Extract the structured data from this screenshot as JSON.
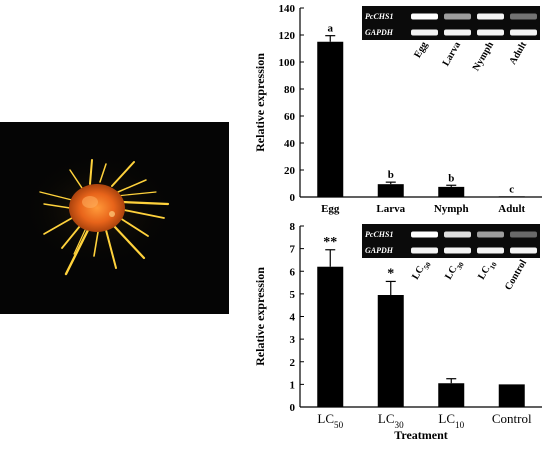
{
  "figure": {
    "photo_alt": "mite specimen photograph"
  },
  "chart_data": [
    {
      "type": "bar",
      "categories": [
        "Egg",
        "Larva",
        "Nymph",
        "Adult"
      ],
      "values": [
        115,
        9.5,
        7.5,
        0.5
      ],
      "errors": [
        4.5,
        1.5,
        1.2,
        0
      ],
      "significance": [
        "a",
        "b",
        "b",
        "c"
      ],
      "xlabel": "",
      "ylabel": "Relative expression",
      "ylim": [
        0,
        140
      ],
      "yticks": [
        0,
        20,
        40,
        60,
        80,
        100,
        120,
        140
      ],
      "grid": false,
      "gel_inset": {
        "genes": [
          "PcCHS1",
          "GAPDH"
        ],
        "lanes": [
          "Egg",
          "Larva",
          "Nymph",
          "Adult"
        ],
        "band_intensity": {
          "PcCHS1": [
            1.0,
            0.55,
            0.95,
            0.35
          ],
          "GAPDH": [
            0.95,
            0.95,
            0.95,
            0.95
          ]
        }
      }
    },
    {
      "type": "bar",
      "categories": [
        "LC50",
        "LC30",
        "LC10",
        "Control"
      ],
      "category_labels": [
        {
          "main": "LC",
          "sub": "50"
        },
        {
          "main": "LC",
          "sub": "30"
        },
        {
          "main": "LC",
          "sub": "10"
        },
        {
          "main": "Control",
          "sub": ""
        }
      ],
      "values": [
        6.2,
        4.95,
        1.05,
        1.0
      ],
      "errors": [
        0.75,
        0.6,
        0.2,
        0
      ],
      "significance": [
        "**",
        "*",
        "",
        ""
      ],
      "xlabel": "Treatment",
      "ylabel": "Relative expression",
      "ylim": [
        0,
        8
      ],
      "yticks": [
        0,
        1,
        2,
        3,
        4,
        5,
        6,
        7,
        8
      ],
      "grid": false,
      "gel_inset": {
        "genes": [
          "PcCHS1",
          "GAPDH"
        ],
        "lanes": [
          {
            "main": "LC",
            "sub": "50"
          },
          {
            "main": "LC",
            "sub": "30"
          },
          {
            "main": "LC",
            "sub": "10"
          },
          {
            "main": "Control",
            "sub": ""
          }
        ],
        "band_intensity": {
          "PcCHS1": [
            1.0,
            0.85,
            0.55,
            0.3
          ],
          "GAPDH": [
            0.95,
            0.95,
            0.95,
            0.95
          ]
        }
      }
    }
  ]
}
